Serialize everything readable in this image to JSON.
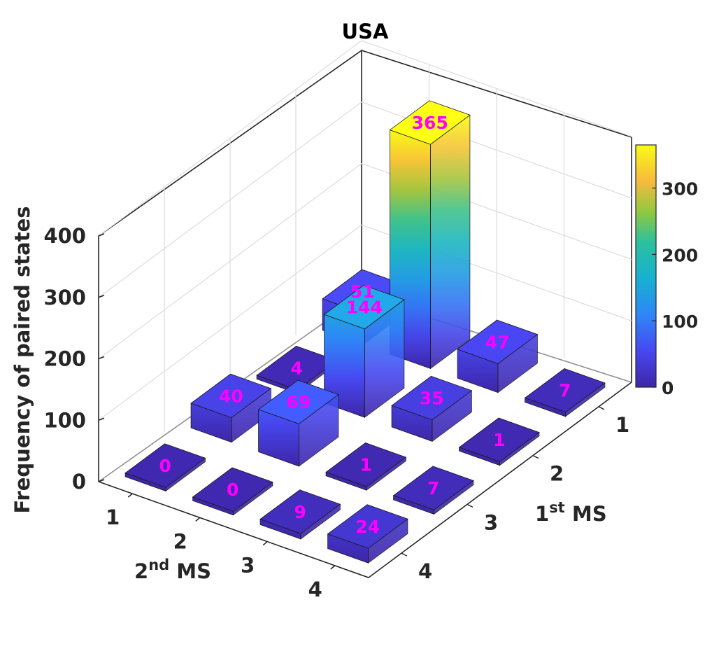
{
  "chart_data": {
    "type": "bar3d",
    "title": "USA",
    "zlabel": "Frequency of paired states",
    "xlabel": {
      "base": "2",
      "sup": "nd",
      "rest": " MS"
    },
    "ylabel": {
      "base": "1",
      "sup": "st",
      "rest": " MS"
    },
    "x_ticks": [
      "1",
      "2",
      "3",
      "4"
    ],
    "y_ticks": [
      "1",
      "2",
      "3",
      "4"
    ],
    "z_ticks": [
      "0",
      "100",
      "200",
      "300",
      "400"
    ],
    "zlim": [
      0,
      400
    ],
    "colorbar": {
      "ticks": [
        "0",
        "100",
        "200",
        "300"
      ],
      "range": [
        0,
        365
      ],
      "colormap": "parula"
    },
    "label_color": "#ff00ff",
    "values": [
      [
        365,
        144,
        51,
        47
      ],
      [
        7,
        1,
        35,
        40
      ],
      [
        69,
        4,
        0,
        0
      ],
      [
        9,
        1,
        7,
        24
      ]
    ],
    "bars": [
      {
        "x": 2,
        "y": 1,
        "value": 365
      },
      {
        "x": 3,
        "y": 1,
        "value": 47
      },
      {
        "x": 4,
        "y": 1,
        "value": 7
      },
      {
        "x": 1,
        "y": 1,
        "value": 51
      },
      {
        "x": 2,
        "y": 2,
        "value": 144
      },
      {
        "x": 3,
        "y": 2,
        "value": 35
      },
      {
        "x": 4,
        "y": 2,
        "value": 1
      },
      {
        "x": 1,
        "y": 2,
        "value": 4
      },
      {
        "x": 1,
        "y": 3,
        "value": 40
      },
      {
        "x": 2,
        "y": 3,
        "value": 69
      },
      {
        "x": 3,
        "y": 3,
        "value": 1
      },
      {
        "x": 4,
        "y": 3,
        "value": 7
      },
      {
        "x": 1,
        "y": 4,
        "value": 0
      },
      {
        "x": 2,
        "y": 4,
        "value": 0
      },
      {
        "x": 3,
        "y": 4,
        "value": 9
      },
      {
        "x": 4,
        "y": 4,
        "value": 24
      }
    ]
  }
}
